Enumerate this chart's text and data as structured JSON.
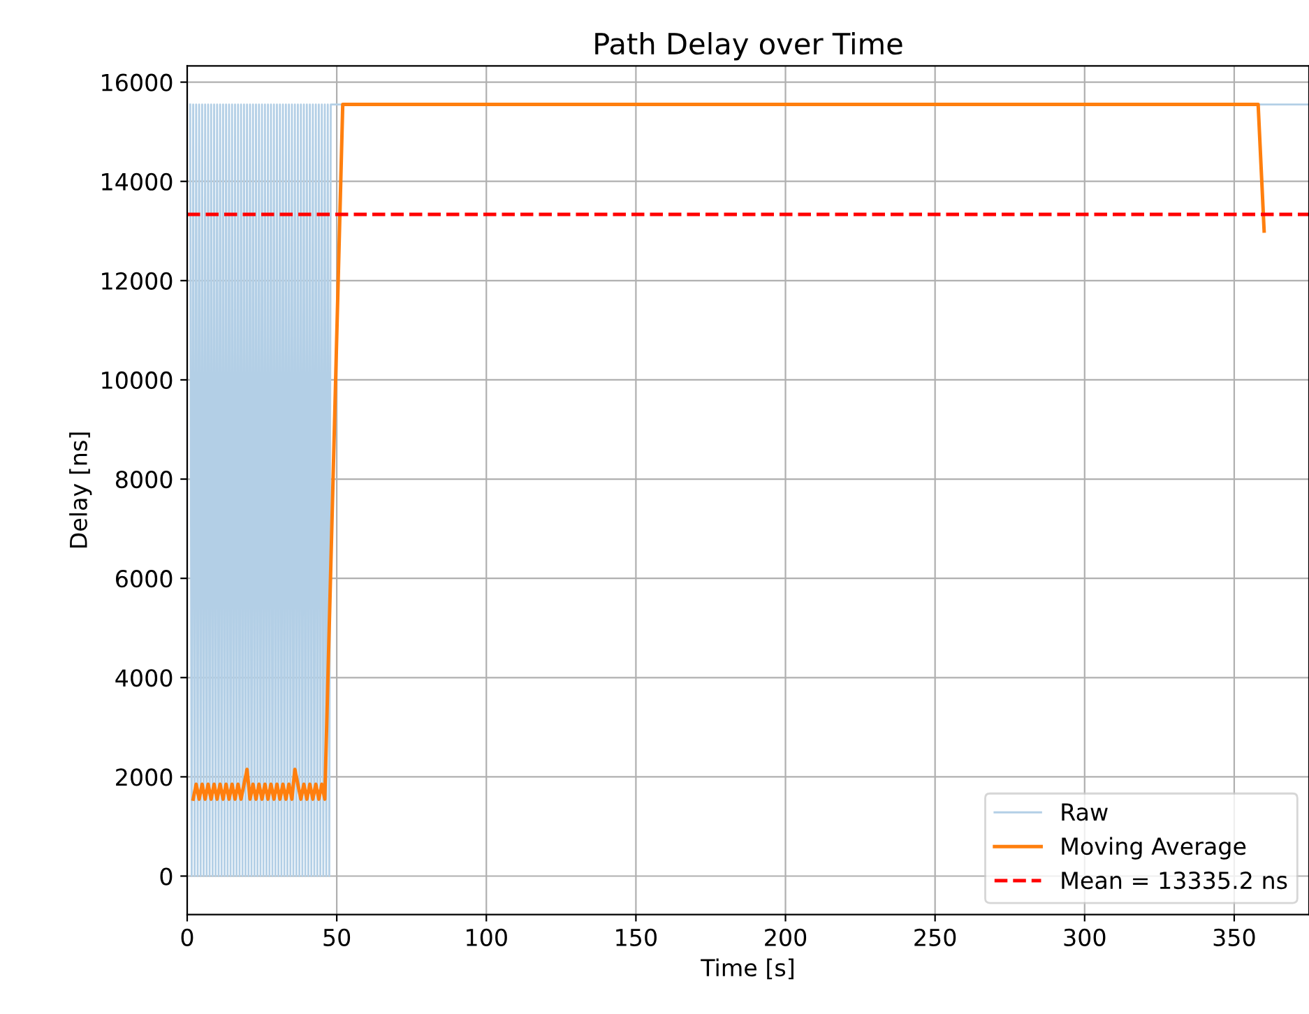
{
  "chart_data": {
    "type": "line",
    "title": "Path Delay over Time",
    "xlabel": "Time [s]",
    "ylabel": "Delay [ns]",
    "xlim": [
      0,
      375
    ],
    "ylim": [
      -777,
      16327
    ],
    "xticks": [
      0,
      50,
      100,
      150,
      200,
      250,
      300,
      350
    ],
    "yticks": [
      0,
      2000,
      4000,
      6000,
      8000,
      10000,
      12000,
      14000,
      16000
    ],
    "grid": true,
    "legend": "bottom right",
    "series": [
      {
        "name": "Raw",
        "color": "#b3cfe6",
        "x": [
          1,
          1.5,
          2,
          2.5,
          3,
          3.5,
          4,
          4.5,
          5,
          5.5,
          6,
          6.5,
          7,
          7.5,
          8,
          8.5,
          9,
          9.5,
          10,
          10.5,
          11,
          11.5,
          12,
          12.5,
          13,
          13.5,
          14,
          14.5,
          15,
          15.5,
          16,
          16.5,
          17,
          17.5,
          18,
          18.5,
          19,
          19.5,
          20,
          20.5,
          21,
          21.5,
          22,
          22.5,
          23,
          23.5,
          24,
          24.5,
          25,
          25.5,
          26,
          26.5,
          27,
          27.5,
          28,
          28.5,
          29,
          29.5,
          30,
          30.5,
          31,
          31.5,
          32,
          32.5,
          33,
          33.5,
          34,
          34.5,
          35,
          35.5,
          36,
          36.5,
          37,
          37.5,
          38,
          38.5,
          39,
          39.5,
          40,
          40.5,
          41,
          41.5,
          42,
          42.5,
          43,
          43.5,
          44,
          44.5,
          45,
          45.5,
          46,
          46.5,
          47,
          47.5,
          48,
          375
        ],
        "values": [
          15550,
          0,
          15550,
          0,
          15550,
          0,
          15550,
          0,
          15550,
          0,
          15550,
          0,
          15550,
          0,
          15550,
          0,
          15550,
          0,
          15550,
          0,
          15550,
          0,
          15550,
          0,
          15550,
          0,
          15550,
          0,
          15550,
          0,
          15550,
          0,
          15550,
          0,
          15550,
          0,
          15550,
          0,
          15550,
          0,
          15550,
          0,
          15550,
          0,
          15550,
          0,
          15550,
          0,
          15550,
          0,
          15550,
          0,
          15550,
          0,
          15550,
          0,
          15550,
          0,
          15550,
          0,
          15550,
          0,
          15550,
          0,
          15550,
          0,
          15550,
          0,
          15550,
          0,
          15550,
          0,
          15550,
          0,
          15550,
          0,
          15550,
          0,
          15550,
          0,
          15550,
          0,
          15550,
          0,
          15550,
          0,
          15550,
          0,
          15550,
          0,
          15550,
          0,
          15550,
          0,
          15550,
          15550
        ]
      },
      {
        "name": "Moving Average",
        "color": "#ff7f0e",
        "x": [
          2,
          3,
          4,
          5,
          6,
          7,
          8,
          9,
          10,
          11,
          12,
          13,
          14,
          15,
          16,
          17,
          18,
          19,
          20,
          21,
          22,
          23,
          24,
          25,
          26,
          27,
          28,
          29,
          30,
          31,
          32,
          33,
          34,
          35,
          36,
          37,
          38,
          39,
          40,
          41,
          42,
          43,
          44,
          45,
          46,
          52,
          100,
          200,
          300,
          358,
          360
        ],
        "values": [
          1550,
          1850,
          1550,
          1850,
          1550,
          1850,
          1550,
          1850,
          1550,
          1850,
          1550,
          1850,
          1550,
          1850,
          1550,
          1850,
          1550,
          1850,
          2150,
          1550,
          1850,
          1550,
          1850,
          1550,
          1850,
          1550,
          1850,
          1550,
          1850,
          1550,
          1850,
          1550,
          1850,
          1550,
          2150,
          1850,
          1550,
          1850,
          1550,
          1850,
          1550,
          1850,
          1550,
          1850,
          1550,
          15550,
          15550,
          15550,
          15550,
          15550,
          13000
        ]
      }
    ],
    "ref_lines": [
      {
        "axis": "y",
        "value": 13335.2,
        "label": "Mean = 13335.2 ns",
        "color": "#ff0000",
        "line_style": "dashed"
      }
    ]
  }
}
